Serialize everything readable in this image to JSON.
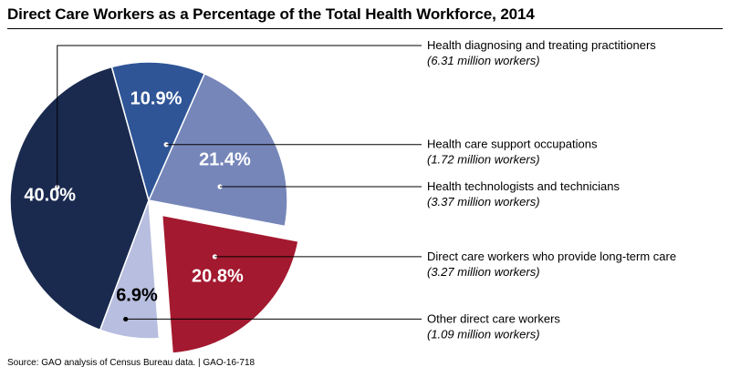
{
  "chart_data": {
    "type": "pie",
    "title": "Direct Care Workers as a Percentage of the Total Health Workforce, 2014",
    "source": "Source: GAO analysis of Census Bureau data.  |  GAO-16-718",
    "slices": [
      {
        "name": "Health diagnosing and treating practitioners",
        "workers": "(6.31 million workers)",
        "value": 40.0,
        "label": "40.0%",
        "color": "#1a2a4f",
        "label_color": "#ffffff",
        "exploded": false
      },
      {
        "name": "Health care support occupations",
        "workers": "(1.72 million workers)",
        "value": 10.9,
        "label": "10.9%",
        "color": "#2f5597",
        "label_color": "#ffffff",
        "exploded": false
      },
      {
        "name": "Health technologists and technicians",
        "workers": "(3.37 million workers)",
        "value": 21.4,
        "label": "21.4%",
        "color": "#7686b9",
        "label_color": "#ffffff",
        "exploded": false
      },
      {
        "name": "Direct care workers who provide long-term care",
        "workers": "(3.27 million workers)",
        "value": 20.8,
        "label": "20.8%",
        "color": "#a3192f",
        "label_color": "#ffffff",
        "exploded": true
      },
      {
        "name": "Other direct care workers",
        "workers": "(1.09 million workers)",
        "value": 6.9,
        "label": "6.9%",
        "color": "#b7bedf",
        "label_color": "#000000",
        "exploded": false
      }
    ],
    "legend": "right"
  }
}
